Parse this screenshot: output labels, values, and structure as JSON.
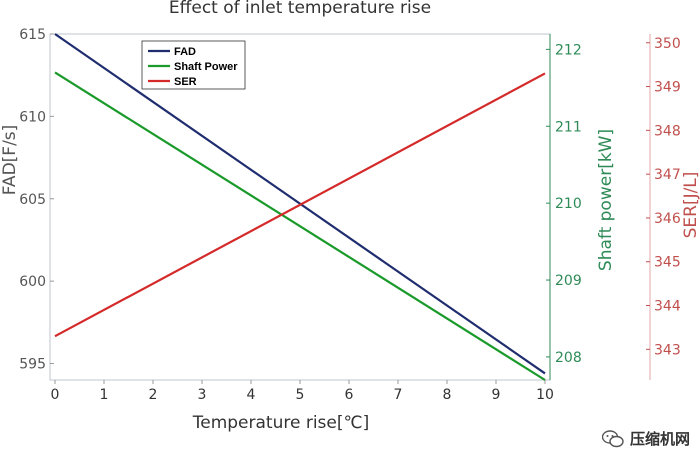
{
  "chart_data": {
    "type": "line",
    "title": "Effect of inlet temperature rise",
    "xlabel": "Temperature rise[℃]",
    "x": [
      0,
      10
    ],
    "xlim": [
      0,
      10
    ],
    "xticks": [
      0,
      1,
      2,
      3,
      4,
      5,
      6,
      7,
      8,
      9,
      10
    ],
    "axes": {
      "left": {
        "label": "FAD[F/s]",
        "ylim": [
          594,
          615
        ],
        "ticks": [
          595,
          600,
          605,
          610,
          615
        ],
        "color": "#555555"
      },
      "right1": {
        "label": "Shaft power[kW]",
        "ylim": [
          207.7,
          212.2
        ],
        "ticks": [
          208,
          209,
          210,
          211,
          212
        ],
        "color": "#2e8b57"
      },
      "right2": {
        "label": "SER[J/L]",
        "ylim": [
          342.3,
          350.2
        ],
        "ticks": [
          343,
          344,
          345,
          346,
          347,
          348,
          349,
          350
        ],
        "color": "#c0504d"
      }
    },
    "series": [
      {
        "name": "FAD",
        "axis": "left",
        "color": "#1f2d6e",
        "values": [
          615.0,
          594.4
        ]
      },
      {
        "name": "Shaft Power",
        "axis": "right1",
        "color": "#1a9a2a",
        "values": [
          211.7,
          207.7
        ]
      },
      {
        "name": "SER",
        "axis": "right2",
        "color": "#d42a2a",
        "values": [
          343.3,
          349.3
        ]
      }
    ],
    "legend_position": "top-left",
    "grid": false
  },
  "watermark": {
    "text": "压缩机网"
  }
}
